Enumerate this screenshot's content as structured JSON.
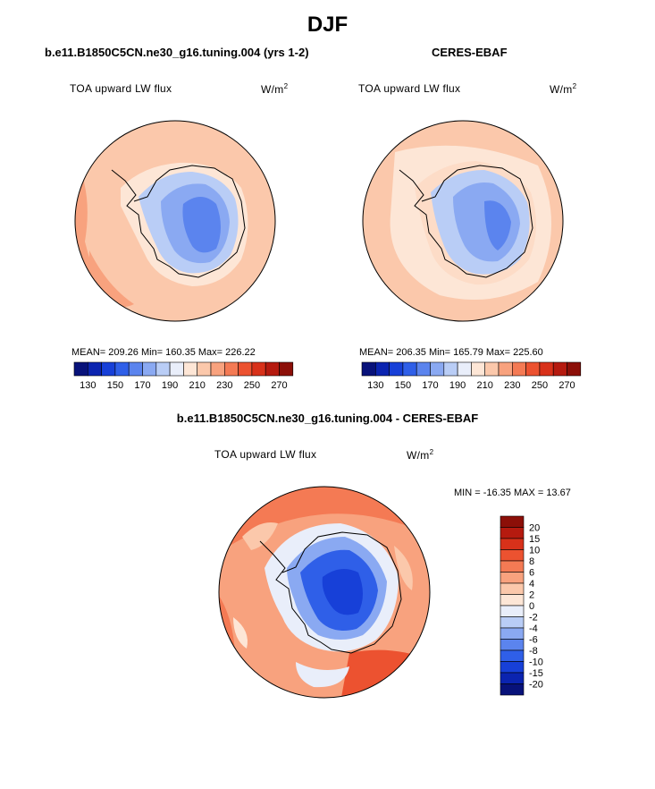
{
  "figure": {
    "title": "DJF"
  },
  "panels": [
    {
      "id": "model",
      "title": "b.e11.B1850C5CN.ne30_g16.tuning.004 (yrs 1-2)",
      "variable": "TOA upward LW flux",
      "units_base": "W/m",
      "units_exp": "2",
      "stats": "MEAN= 209.26   Min= 160.35   Max= 226.22"
    },
    {
      "id": "obs",
      "title": "CERES-EBAF",
      "variable": "TOA upward LW flux",
      "units_base": "W/m",
      "units_exp": "2",
      "stats": "MEAN= 206.35   Min= 165.79   Max= 225.60"
    },
    {
      "id": "diff",
      "title": "b.e11.B1850C5CN.ne30_g16.tuning.004 - CERES-EBAF",
      "variable": "TOA upward LW flux",
      "units_base": "W/m",
      "units_exp": "2",
      "stats": "MIN =  -16.35  MAX =    13.67"
    }
  ],
  "chart_data": [
    {
      "type": "heatmap",
      "name": "model",
      "projection": "south polar stereographic",
      "colorbar": {
        "orientation": "horizontal",
        "tick_labels": [
          "130",
          "150",
          "170",
          "190",
          "210",
          "230",
          "250",
          "270"
        ],
        "colors": [
          "#08127a",
          "#0b24b0",
          "#1740d8",
          "#2f5fe8",
          "#5b84ee",
          "#8aa9f2",
          "#b9cdf6",
          "#e9eefa",
          "#fde6d6",
          "#fbc8ab",
          "#f8a27e",
          "#f47a54",
          "#ec5230",
          "#d8311a",
          "#b51a0f",
          "#8c0f08"
        ]
      },
      "mean": 209.26,
      "min": 160.35,
      "max": 226.22
    },
    {
      "type": "heatmap",
      "name": "obs",
      "projection": "south polar stereographic",
      "colorbar": {
        "orientation": "horizontal",
        "tick_labels": [
          "130",
          "150",
          "170",
          "190",
          "210",
          "230",
          "250",
          "270"
        ],
        "colors": [
          "#08127a",
          "#0b24b0",
          "#1740d8",
          "#2f5fe8",
          "#5b84ee",
          "#8aa9f2",
          "#b9cdf6",
          "#e9eefa",
          "#fde6d6",
          "#fbc8ab",
          "#f8a27e",
          "#f47a54",
          "#ec5230",
          "#d8311a",
          "#b51a0f",
          "#8c0f08"
        ]
      },
      "mean": 206.35,
      "min": 165.79,
      "max": 225.6
    },
    {
      "type": "heatmap",
      "name": "difference",
      "projection": "south polar stereographic",
      "colorbar": {
        "orientation": "vertical",
        "tick_labels": [
          "20",
          "15",
          "10",
          "8",
          "6",
          "4",
          "2",
          "0",
          "-2",
          "-4",
          "-6",
          "-8",
          "-10",
          "-15",
          "-20"
        ],
        "colors": [
          "#8c0f08",
          "#b51a0f",
          "#d8311a",
          "#ec5230",
          "#f47a54",
          "#f8a27e",
          "#fbc8ab",
          "#fde6d6",
          "#e9eefa",
          "#b9cdf6",
          "#8aa9f2",
          "#5b84ee",
          "#2f5fe8",
          "#1740d8",
          "#0b24b0",
          "#08127a"
        ]
      },
      "min": -16.35,
      "max": 13.67
    }
  ]
}
